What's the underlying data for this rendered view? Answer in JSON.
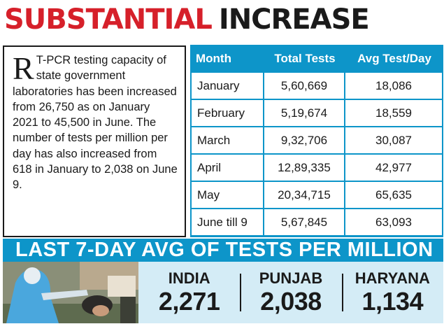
{
  "headline": {
    "part1": "SUBSTANTIAL",
    "part2": "INCREASE"
  },
  "article": {
    "dropcap": "R",
    "body": "T-PCR testing capacity of state government laboratories has been increased from 26,750 as on January 2021 to 45,500 in June. The number of tests per million per day has also increased from 618 in January to 2,038 on June 9."
  },
  "table": {
    "headers": [
      "Month",
      "Total Tests",
      "Avg Test/Day"
    ],
    "rows": [
      [
        "January",
        "5,60,669",
        "18,086"
      ],
      [
        "February",
        "5,19,674",
        "18,559"
      ],
      [
        "March",
        "9,32,706",
        "30,087"
      ],
      [
        "April",
        "12,89,335",
        "42,977"
      ],
      [
        "May",
        "20,34,715",
        "65,635"
      ],
      [
        "June till 9",
        "5,67,845",
        "63,093"
      ]
    ]
  },
  "banner": {
    "text": "LAST 7-DAY AVG OF TESTS PER MILLION"
  },
  "stats": [
    {
      "name": "INDIA",
      "value": "2,271"
    },
    {
      "name": "PUNJAB",
      "value": "2,038"
    },
    {
      "name": "HARYANA",
      "value": "1,134"
    }
  ],
  "colors": {
    "accent_red": "#d6202a",
    "table_blue": "#0d95c9",
    "stats_bg": "#d4ecf6"
  }
}
